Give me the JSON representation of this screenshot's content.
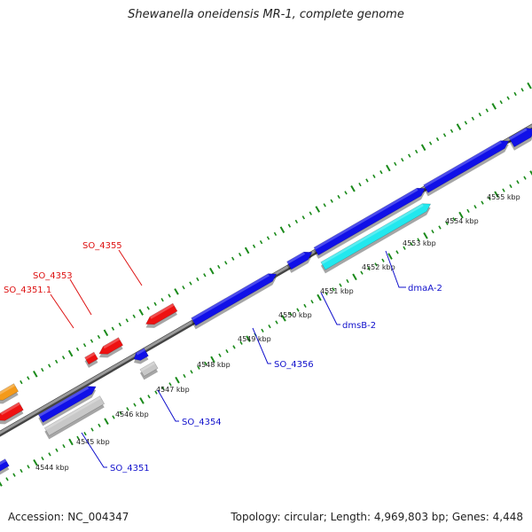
{
  "title": "Shewanella oneidensis MR-1, complete genome",
  "footer": {
    "accession_label": "Accession: ",
    "accession": "NC_004347",
    "topology_label": "Topology: ",
    "topology": "circular",
    "length_label": "; Length: ",
    "length": "4,969,803 bp",
    "genes_label": "; Genes: ",
    "genes": "4,448"
  },
  "colors": {
    "backbone": "#888888",
    "tick": "#1a8a1a",
    "blue_gene": "#1010e8",
    "red_gene": "#ee1111",
    "cyan_gene": "#22e8ee",
    "gray_gene": "#c8c8c8",
    "orange_gene": "#f49a1a",
    "blue_label": "#1010cc",
    "red_label": "#dd1111"
  },
  "scale_labels": [
    "4544 kbp",
    "4545 kbp",
    "4546 kbp",
    "4547 kbp",
    "4548 kbp",
    "4549 kbp",
    "4550 kbp",
    "4551 kbp",
    "4552 kbp",
    "4553 kbp",
    "4554 kbp",
    "4555 kbp"
  ],
  "gene_labels": {
    "SO_4355": "SO_4355",
    "SO_4353": "SO_4353",
    "SO_4351_1": "SO_4351.1",
    "dmaA_2": "dmaA-2",
    "dmsB_2": "dmsB-2",
    "SO_4356": "SO_4356",
    "SO_4354": "SO_4354",
    "SO_4351": "SO_4351"
  }
}
